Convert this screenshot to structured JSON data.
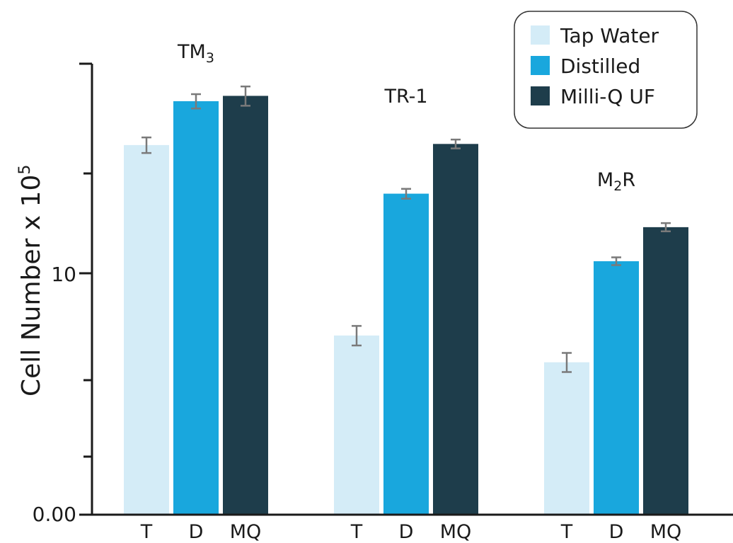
{
  "chart_data": {
    "type": "bar",
    "ylabel": "Cell Number x 10",
    "ylabel_superscript": "5",
    "yticks": [
      "0.00",
      "10"
    ],
    "yscale": "log",
    "legend": {
      "placement": "top-right",
      "entries": [
        {
          "name": "Tap Water",
          "color": "#d4ecf7"
        },
        {
          "name": "Distilled",
          "color": "#19a7dd"
        },
        {
          "name": "Milli-Q UF",
          "color": "#1e3d4b"
        }
      ]
    },
    "groups": [
      {
        "label": "TM",
        "label_sub": "3",
        "categories": [
          "T",
          "D",
          "MQ"
        ],
        "values": [
          18.6,
          23.0,
          23.6
        ],
        "errors": [
          0.7,
          0.8,
          1.1
        ]
      },
      {
        "label": "TR-1",
        "label_sub": "",
        "categories": [
          "T",
          "D",
          "MQ"
        ],
        "values": [
          7.4,
          14.7,
          18.7
        ],
        "errors": [
          0.35,
          0.35,
          0.4
        ]
      },
      {
        "label": "M",
        "label_sub": "2",
        "label_suffix": "R",
        "categories": [
          "T",
          "D",
          "MQ"
        ],
        "values": [
          6.5,
          10.6,
          12.5
        ],
        "errors": [
          0.3,
          0.2,
          0.25
        ]
      }
    ]
  }
}
